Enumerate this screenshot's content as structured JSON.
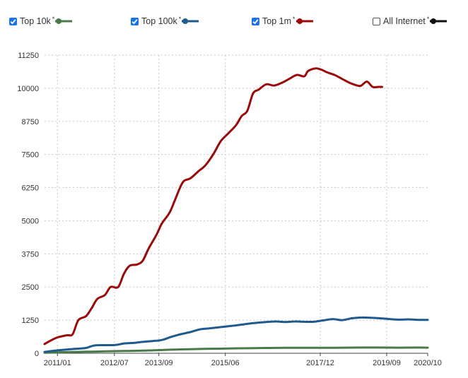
{
  "legend": [
    {
      "label": "Top 10k",
      "checked": true,
      "color": "#4a7a4a"
    },
    {
      "label": "Top 100k",
      "checked": true,
      "color": "#1f5a8c"
    },
    {
      "label": "Top 1m",
      "checked": true,
      "color": "#9a0a0a"
    },
    {
      "label": "All Internet",
      "checked": false,
      "color": "#111111"
    }
  ],
  "legend_marker": "*",
  "chart_data": {
    "type": "line",
    "title": "",
    "xlabel": "",
    "ylabel": "",
    "xlim": [
      2010.66,
      2020.75
    ],
    "ylim": [
      0,
      11250
    ],
    "grid": true,
    "x_ticks": [
      {
        "label": "2011/01",
        "value": 2011.0
      },
      {
        "label": "2012/07",
        "value": 2012.5
      },
      {
        "label": "2013/09",
        "value": 2013.67
      },
      {
        "label": "2015/06",
        "value": 2015.42
      },
      {
        "label": "2017/12",
        "value": 2017.92
      },
      {
        "label": "2019/09",
        "value": 2019.67
      },
      {
        "label": "2020/10",
        "value": 2020.75
      }
    ],
    "y_ticks": [
      0,
      1250,
      2500,
      3750,
      5000,
      6250,
      7500,
      8750,
      10000,
      11250
    ],
    "y_tick_labels": [
      "0",
      "1250",
      "2500",
      "3750",
      "5000",
      "6250",
      "7500",
      "8750",
      "10000",
      "11250"
    ],
    "series": [
      {
        "name": "Top 10k",
        "color": "#4a7a4a",
        "points": [
          [
            2010.66,
            20
          ],
          [
            2011.0,
            35
          ],
          [
            2011.5,
            50
          ],
          [
            2012.0,
            65
          ],
          [
            2012.5,
            80
          ],
          [
            2013.0,
            90
          ],
          [
            2013.5,
            110
          ],
          [
            2014.0,
            135
          ],
          [
            2014.5,
            155
          ],
          [
            2015.0,
            170
          ],
          [
            2015.5,
            180
          ],
          [
            2016.0,
            190
          ],
          [
            2016.5,
            200
          ],
          [
            2017.0,
            205
          ],
          [
            2017.5,
            205
          ],
          [
            2018.0,
            205
          ],
          [
            2018.5,
            210
          ],
          [
            2019.0,
            215
          ],
          [
            2019.5,
            215
          ],
          [
            2020.0,
            210
          ],
          [
            2020.5,
            215
          ],
          [
            2020.75,
            210
          ]
        ]
      },
      {
        "name": "Top 100k",
        "color": "#1f5a8c",
        "points": [
          [
            2010.66,
            50
          ],
          [
            2011.0,
            110
          ],
          [
            2011.4,
            160
          ],
          [
            2011.75,
            200
          ],
          [
            2012.0,
            300
          ],
          [
            2012.5,
            310
          ],
          [
            2012.75,
            370
          ],
          [
            2013.0,
            390
          ],
          [
            2013.25,
            430
          ],
          [
            2013.5,
            460
          ],
          [
            2013.75,
            500
          ],
          [
            2014.0,
            620
          ],
          [
            2014.25,
            720
          ],
          [
            2014.5,
            800
          ],
          [
            2014.75,
            900
          ],
          [
            2015.0,
            940
          ],
          [
            2015.25,
            980
          ],
          [
            2015.5,
            1020
          ],
          [
            2015.75,
            1060
          ],
          [
            2016.0,
            1110
          ],
          [
            2016.25,
            1150
          ],
          [
            2016.5,
            1180
          ],
          [
            2016.75,
            1200
          ],
          [
            2017.0,
            1180
          ],
          [
            2017.25,
            1200
          ],
          [
            2017.5,
            1190
          ],
          [
            2017.75,
            1190
          ],
          [
            2018.0,
            1240
          ],
          [
            2018.25,
            1290
          ],
          [
            2018.5,
            1250
          ],
          [
            2018.75,
            1320
          ],
          [
            2019.0,
            1350
          ],
          [
            2019.25,
            1340
          ],
          [
            2019.5,
            1320
          ],
          [
            2019.75,
            1290
          ],
          [
            2020.0,
            1270
          ],
          [
            2020.25,
            1280
          ],
          [
            2020.5,
            1260
          ],
          [
            2020.75,
            1260
          ]
        ]
      },
      {
        "name": "Top 1m",
        "color": "#9a0a0a",
        "points": [
          [
            2010.66,
            350
          ],
          [
            2010.85,
            500
          ],
          [
            2011.0,
            600
          ],
          [
            2011.25,
            680
          ],
          [
            2011.4,
            720
          ],
          [
            2011.55,
            1250
          ],
          [
            2011.75,
            1400
          ],
          [
            2011.9,
            1700
          ],
          [
            2012.05,
            2050
          ],
          [
            2012.25,
            2200
          ],
          [
            2012.4,
            2500
          ],
          [
            2012.6,
            2500
          ],
          [
            2012.75,
            3000
          ],
          [
            2012.9,
            3300
          ],
          [
            2013.1,
            3350
          ],
          [
            2013.25,
            3500
          ],
          [
            2013.4,
            3950
          ],
          [
            2013.6,
            4450
          ],
          [
            2013.75,
            4900
          ],
          [
            2013.95,
            5300
          ],
          [
            2014.1,
            5800
          ],
          [
            2014.3,
            6450
          ],
          [
            2014.5,
            6600
          ],
          [
            2014.7,
            6850
          ],
          [
            2014.9,
            7100
          ],
          [
            2015.1,
            7500
          ],
          [
            2015.3,
            8000
          ],
          [
            2015.5,
            8300
          ],
          [
            2015.7,
            8600
          ],
          [
            2015.85,
            8950
          ],
          [
            2016.0,
            9150
          ],
          [
            2016.15,
            9800
          ],
          [
            2016.3,
            9950
          ],
          [
            2016.5,
            10150
          ],
          [
            2016.7,
            10100
          ],
          [
            2016.9,
            10200
          ],
          [
            2017.1,
            10350
          ],
          [
            2017.3,
            10500
          ],
          [
            2017.5,
            10450
          ],
          [
            2017.6,
            10650
          ],
          [
            2017.8,
            10750
          ],
          [
            2017.95,
            10700
          ],
          [
            2018.1,
            10600
          ],
          [
            2018.3,
            10500
          ],
          [
            2018.5,
            10350
          ],
          [
            2018.7,
            10200
          ],
          [
            2018.9,
            10100
          ],
          [
            2019.0,
            10100
          ],
          [
            2019.15,
            10250
          ],
          [
            2019.3,
            10050
          ],
          [
            2019.45,
            10050
          ],
          [
            2019.55,
            10050
          ]
        ]
      }
    ]
  }
}
